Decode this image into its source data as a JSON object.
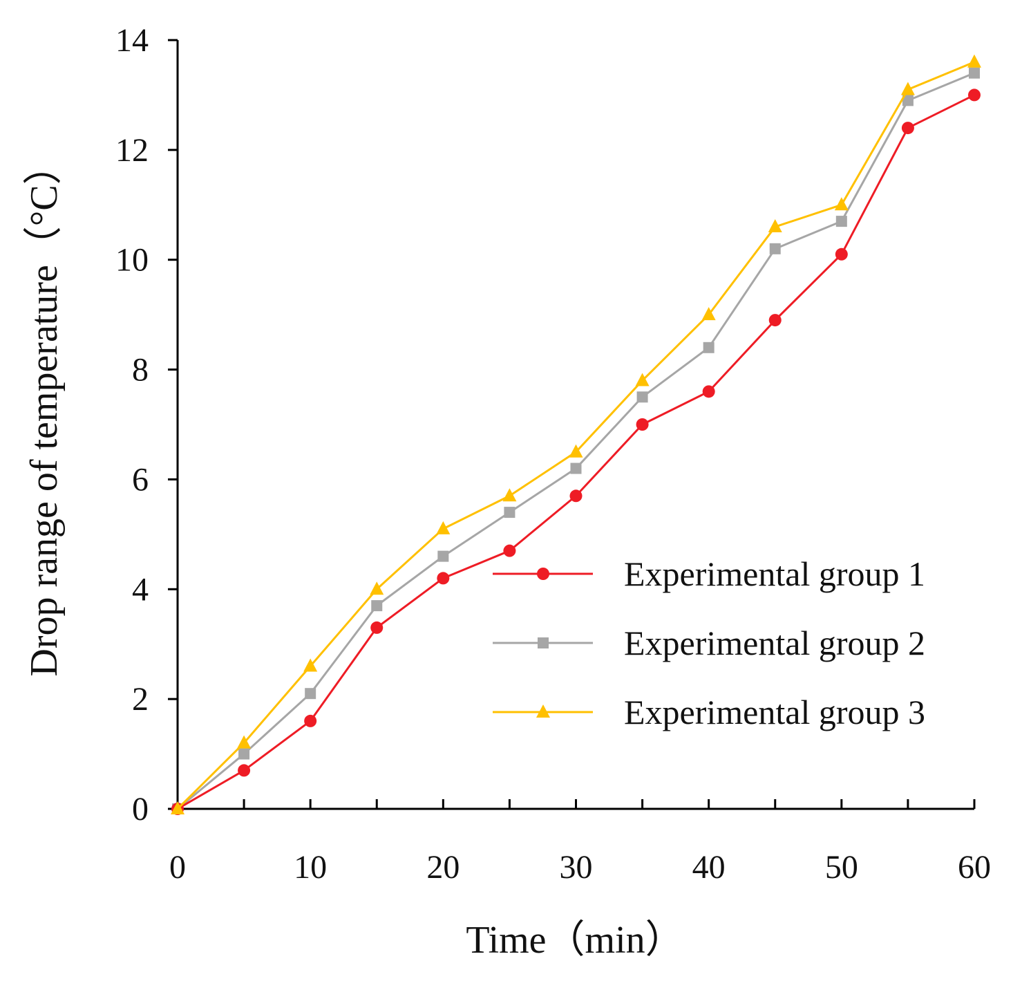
{
  "chart_data": {
    "type": "line",
    "title": "",
    "xlabel": "Time（min）",
    "ylabel": "Drop range of temperature（°C）",
    "xlim": [
      0,
      60
    ],
    "ylim": [
      0,
      14
    ],
    "x_ticks": [
      0,
      10,
      20,
      30,
      40,
      50,
      60
    ],
    "y_ticks": [
      0,
      2,
      4,
      6,
      8,
      10,
      12,
      14
    ],
    "x_minor_ticks": [
      5,
      15,
      25,
      35,
      45,
      55
    ],
    "grid": false,
    "legend_position": "right",
    "x": [
      0,
      5,
      10,
      15,
      20,
      25,
      30,
      35,
      40,
      45,
      50,
      55,
      60
    ],
    "series": [
      {
        "name": "Experimental group 1",
        "color": "#ee1c25",
        "marker": "circle",
        "values": [
          0,
          0.7,
          1.6,
          3.3,
          4.2,
          4.7,
          5.7,
          7.0,
          7.6,
          8.9,
          10.1,
          12.4,
          13.0
        ]
      },
      {
        "name": "Experimental group 2",
        "color": "#a6a6a6",
        "marker": "square",
        "values": [
          0,
          1.0,
          2.1,
          3.7,
          4.6,
          5.4,
          6.2,
          7.5,
          8.4,
          10.2,
          10.7,
          12.9,
          13.4
        ]
      },
      {
        "name": "Experimental group 3",
        "color": "#ffc000",
        "marker": "triangle",
        "values": [
          0,
          1.2,
          2.6,
          4.0,
          5.1,
          5.7,
          6.5,
          7.8,
          9.0,
          10.6,
          11.0,
          13.1,
          13.6
        ]
      }
    ]
  }
}
